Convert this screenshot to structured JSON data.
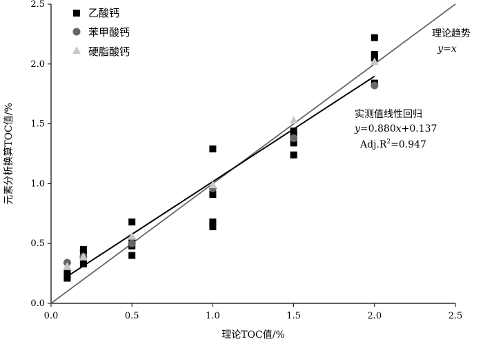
{
  "chart_data": {
    "type": "scatter",
    "xlabel": "理论TOC值/%",
    "ylabel": "元素分析换算TOC值/%",
    "xlim": [
      0,
      2.5
    ],
    "ylim": [
      0,
      2.5
    ],
    "xticks": [
      "0.0",
      "0.5",
      "1.0",
      "1.5",
      "2.0",
      "2.5"
    ],
    "yticks": [
      "0.0",
      "0.5",
      "1.0",
      "1.5",
      "2.0",
      "2.5"
    ],
    "grid": false,
    "legend_position": "top-left",
    "series": [
      {
        "name": "乙酸钙",
        "marker": "square",
        "color": "#000000",
        "points": [
          [
            0.1,
            0.21
          ],
          [
            0.1,
            0.25
          ],
          [
            0.1,
            0.23
          ],
          [
            0.2,
            0.33
          ],
          [
            0.2,
            0.42
          ],
          [
            0.2,
            0.45
          ],
          [
            0.5,
            0.4
          ],
          [
            0.5,
            0.48
          ],
          [
            0.5,
            0.52
          ],
          [
            0.5,
            0.68
          ],
          [
            1.0,
            0.64
          ],
          [
            1.0,
            0.68
          ],
          [
            1.0,
            0.91
          ],
          [
            1.0,
            1.29
          ],
          [
            1.5,
            1.24
          ],
          [
            1.5,
            1.34
          ],
          [
            1.5,
            1.4
          ],
          [
            1.5,
            1.44
          ],
          [
            2.0,
            1.84
          ],
          [
            2.0,
            2.05
          ],
          [
            2.0,
            2.08
          ],
          [
            2.0,
            2.22
          ]
        ]
      },
      {
        "name": "苯甲酸钙",
        "marker": "circle",
        "color": "#666666",
        "points": [
          [
            0.1,
            0.34
          ],
          [
            0.2,
            0.39
          ],
          [
            0.5,
            0.5
          ],
          [
            1.0,
            0.96
          ],
          [
            1.5,
            1.38
          ],
          [
            2.0,
            1.82
          ]
        ]
      },
      {
        "name": "硬脂酸钙",
        "marker": "triangle",
        "color": "#c8c8c8",
        "points": [
          [
            0.1,
            0.31
          ],
          [
            0.2,
            0.39
          ],
          [
            0.5,
            0.56
          ],
          [
            1.0,
            0.99
          ],
          [
            1.5,
            1.53
          ],
          [
            2.0,
            2.02
          ]
        ]
      }
    ],
    "lines": [
      {
        "label": "理论趋势",
        "eq_lhs": "y",
        "eq_rhs": "=x",
        "slope": 1.0,
        "intercept": 0.0,
        "x_range": [
          0,
          2.5
        ],
        "color": "#666666"
      },
      {
        "label": "实测值线性回归",
        "slope": 0.88,
        "intercept": 0.137,
        "x_range": [
          0.1,
          2.0
        ],
        "color": "#000000"
      }
    ],
    "regression_text": {
      "eq_lhs": "y",
      "eq_mid": "=0.880",
      "eq_x": "x",
      "eq_rhs": "+0.137",
      "adj_prefix": "Adj.R",
      "adj_sup": "2",
      "adj_value": "=0.947"
    }
  }
}
